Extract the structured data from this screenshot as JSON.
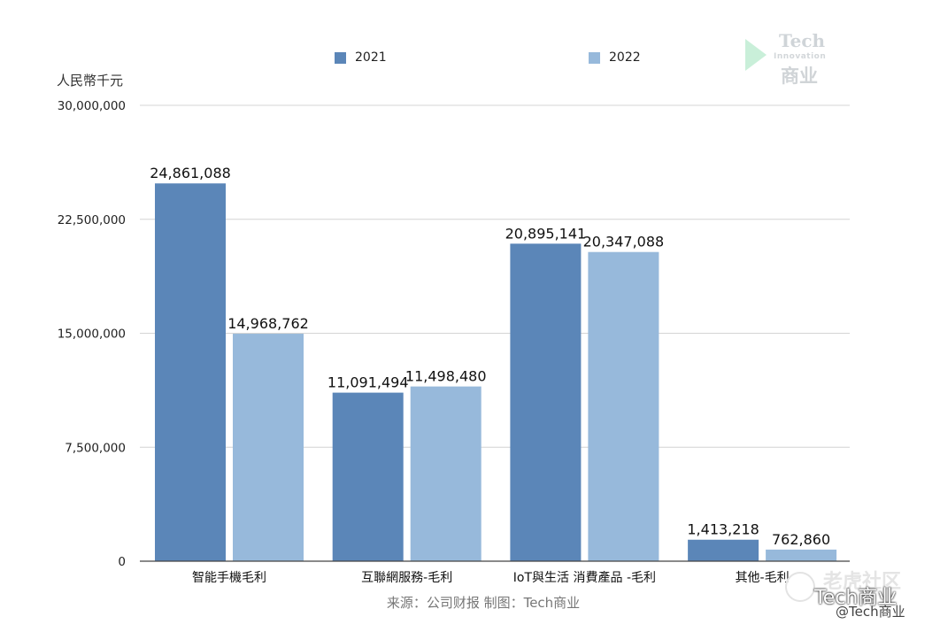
{
  "chart_data": {
    "type": "bar",
    "unit_label": "人民幣千元",
    "categories": [
      "智能手機毛利",
      "互聯網服務-毛利",
      "IoT與生活 消費產品 -毛利",
      "其他-毛利"
    ],
    "series": [
      {
        "name": "2021",
        "color": "#5b86b8",
        "values": [
          24861088,
          11091494,
          20895141,
          1413218
        ]
      },
      {
        "name": "2022",
        "color": "#97b9db",
        "values": [
          14968762,
          11498480,
          20347088,
          762860
        ]
      }
    ],
    "data_labels": [
      [
        "24,861,088",
        "11,091,494",
        "20,895,141",
        "1,413,218"
      ],
      [
        "14,968,762",
        "11,498,480",
        "20,347,088",
        "762,860"
      ]
    ],
    "yticks": [
      0,
      7500000,
      15000000,
      22500000,
      30000000
    ],
    "ytick_labels": [
      "0",
      "7,500,000",
      "15,000,000",
      "22,500,000",
      "30,000,000"
    ],
    "ylim": [
      0,
      30000000
    ],
    "legend_position": "top",
    "grid": true,
    "source_note": "来源：公司财报 制图：Tech商业"
  },
  "logo": {
    "tech": "Tech",
    "innovation": "Innovation",
    "chinese": "商业"
  },
  "watermark": {
    "site": "老虎社区",
    "brand": "Tech商业",
    "handle": "@Tech商业"
  }
}
